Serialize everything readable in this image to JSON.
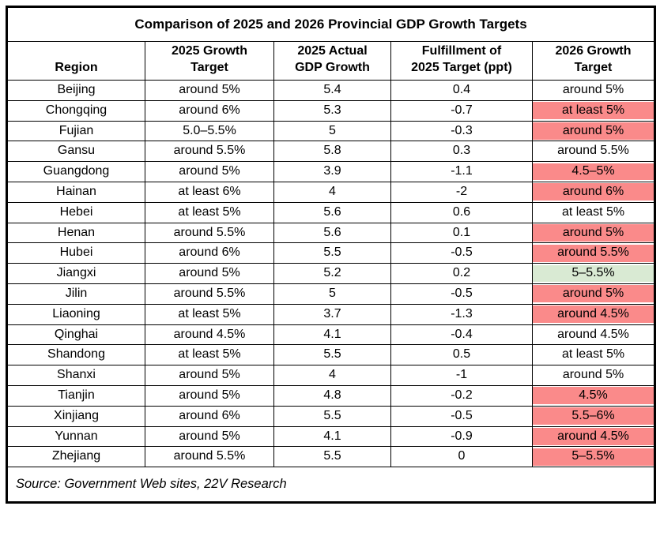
{
  "chart_data": {
    "type": "table",
    "title": "Comparison of 2025 and 2026 Provincial GDP Growth Targets",
    "columns": [
      {
        "label": "Region",
        "lines": [
          "Region"
        ]
      },
      {
        "label": "2025 Growth Target",
        "lines": [
          "2025 Growth",
          "Target"
        ]
      },
      {
        "label": "2025 Actual GDP Growth",
        "lines": [
          "2025 Actual",
          "GDP Growth"
        ]
      },
      {
        "label": "Fulfillment of 2025 Target (ppt)",
        "lines": [
          "Fulfillment of",
          "2025 Target (ppt)"
        ]
      },
      {
        "label": "2026 Growth Target",
        "lines": [
          "2026 Growth",
          "Target"
        ]
      }
    ],
    "rows": [
      {
        "cells": [
          "Beijing",
          "around 5%",
          "5.4",
          "0.4",
          "around 5%"
        ],
        "highlight": null
      },
      {
        "cells": [
          "Chongqing",
          "around 6%",
          "5.3",
          "-0.7",
          "at least 5%"
        ],
        "highlight": "red"
      },
      {
        "cells": [
          "Fujian",
          "5.0–5.5%",
          "5",
          "-0.3",
          "around 5%"
        ],
        "highlight": "red"
      },
      {
        "cells": [
          "Gansu",
          "around 5.5%",
          "5.8",
          "0.3",
          "around 5.5%"
        ],
        "highlight": null
      },
      {
        "cells": [
          "Guangdong",
          "around 5%",
          "3.9",
          "-1.1",
          "4.5–5%"
        ],
        "highlight": "red"
      },
      {
        "cells": [
          "Hainan",
          "at least 6%",
          "4",
          "-2",
          "around 6%"
        ],
        "highlight": "red"
      },
      {
        "cells": [
          "Hebei",
          "at least 5%",
          "5.6",
          "0.6",
          "at least 5%"
        ],
        "highlight": null
      },
      {
        "cells": [
          "Henan",
          "around 5.5%",
          "5.6",
          "0.1",
          "around 5%"
        ],
        "highlight": "red"
      },
      {
        "cells": [
          "Hubei",
          "around 6%",
          "5.5",
          "-0.5",
          "around 5.5%"
        ],
        "highlight": "red"
      },
      {
        "cells": [
          "Jiangxi",
          "around 5%",
          "5.2",
          "0.2",
          "5–5.5%"
        ],
        "highlight": "green"
      },
      {
        "cells": [
          "Jilin",
          "around 5.5%",
          "5",
          "-0.5",
          "around 5%"
        ],
        "highlight": "red"
      },
      {
        "cells": [
          "Liaoning",
          "at least 5%",
          "3.7",
          "-1.3",
          "around 4.5%"
        ],
        "highlight": "red"
      },
      {
        "cells": [
          "Qinghai",
          "around 4.5%",
          "4.1",
          "-0.4",
          "around 4.5%"
        ],
        "highlight": null
      },
      {
        "cells": [
          "Shandong",
          "at least 5%",
          "5.5",
          "0.5",
          "at least 5%"
        ],
        "highlight": null
      },
      {
        "cells": [
          "Shanxi",
          "around 5%",
          "4",
          "-1",
          "around 5%"
        ],
        "highlight": null
      },
      {
        "cells": [
          "Tianjin",
          "around 5%",
          "4.8",
          "-0.2",
          "4.5%"
        ],
        "highlight": "red"
      },
      {
        "cells": [
          "Xinjiang",
          "around 6%",
          "5.5",
          "-0.5",
          "5.5–6%"
        ],
        "highlight": "red"
      },
      {
        "cells": [
          "Yunnan",
          "around 5%",
          "4.1",
          "-0.9",
          "around 4.5%"
        ],
        "highlight": "red"
      },
      {
        "cells": [
          "Zhejiang",
          "around 5.5%",
          "5.5",
          "0",
          "5–5.5%"
        ],
        "highlight": "red"
      }
    ],
    "layout_hints": {
      "grid": true,
      "highlight_column": "2026 Growth Target"
    }
  },
  "source": "Source: Government Web sites, 22V Research",
  "colors": {
    "highlight_red": "#FA8A8A",
    "highlight_green": "#D9EAD3",
    "border": "#000000",
    "text": "#000000",
    "background": "#FFFFFF"
  }
}
